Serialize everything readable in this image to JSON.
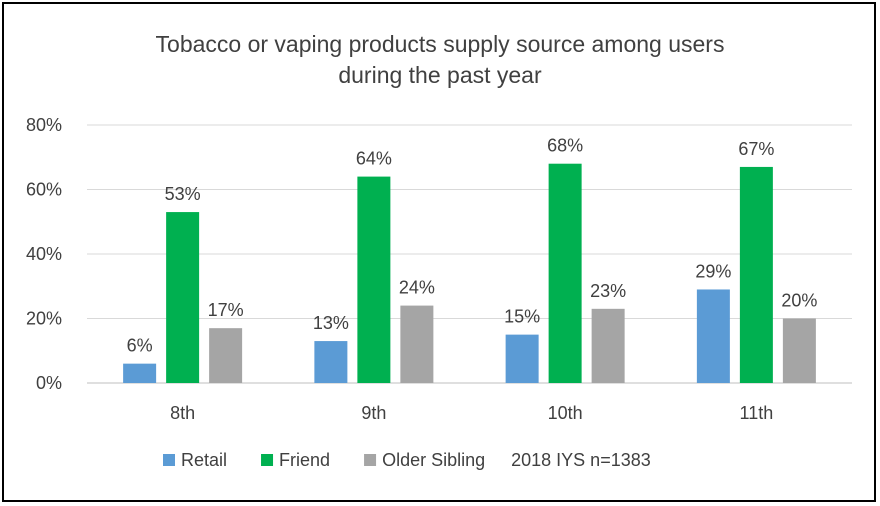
{
  "chart_data": {
    "type": "bar",
    "title_lines": [
      "Tobacco or vaping products supply source among users",
      "during the past year"
    ],
    "categories": [
      "8th",
      "9th",
      "10th",
      "11th"
    ],
    "series": [
      {
        "name": "Retail",
        "color": "#5B9BD5",
        "values": [
          6,
          13,
          15,
          29
        ],
        "labels": [
          "6%",
          "13%",
          "15%",
          "29%"
        ]
      },
      {
        "name": "Friend",
        "color": "#00B050",
        "values": [
          53,
          64,
          68,
          67
        ],
        "labels": [
          "53%",
          "64%",
          "68%",
          "67%"
        ]
      },
      {
        "name": "Older Sibling",
        "color": "#A5A5A5",
        "values": [
          17,
          24,
          23,
          20
        ],
        "labels": [
          "17%",
          "24%",
          "23%",
          "20%"
        ]
      }
    ],
    "ylim": [
      0,
      80
    ],
    "yticks": [
      0,
      20,
      40,
      60,
      80
    ],
    "ytick_labels": [
      "0%",
      "20%",
      "40%",
      "60%",
      "80%"
    ],
    "grid": true,
    "legend_position": "bottom",
    "legend_note": "2018 IYS n=1383"
  }
}
